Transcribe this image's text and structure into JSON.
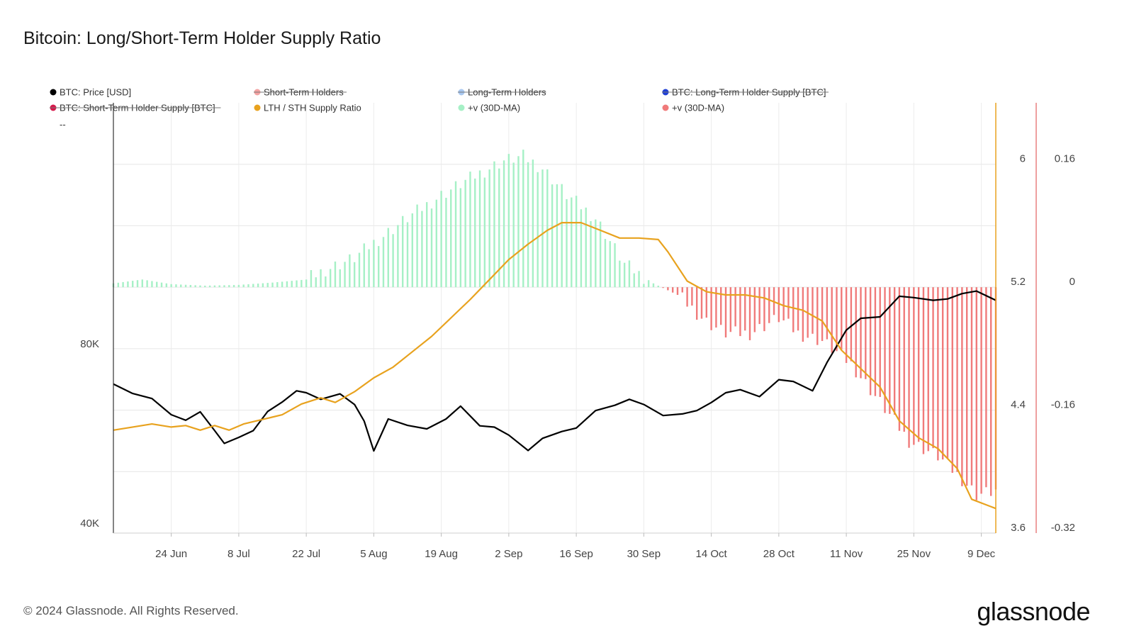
{
  "title": "Bitcoin: Long/Short-Term Holder Supply Ratio",
  "copyright": "© 2024 Glassnode. All Rights Reserved.",
  "brand": "glassnode",
  "chart_data": {
    "type": "line",
    "x_ticks": [
      "24 Jun",
      "8 Jul",
      "22 Jul",
      "5 Aug",
      "19 Aug",
      "2 Sep",
      "16 Sep",
      "30 Sep",
      "14 Oct",
      "28 Oct",
      "11 Nov",
      "25 Nov",
      "9 Dec"
    ],
    "x_tick_dates": [
      "2024-06-24",
      "2024-07-08",
      "2024-07-22",
      "2024-08-05",
      "2024-08-19",
      "2024-09-02",
      "2024-09-16",
      "2024-09-30",
      "2024-10-14",
      "2024-10-28",
      "2024-11-11",
      "2024-11-25",
      "2024-12-09"
    ],
    "x_range": [
      "2024-06-12",
      "2024-12-12"
    ],
    "legend": [
      {
        "label": "BTC: Price [USD]",
        "color": "#000000",
        "struck": false
      },
      {
        "label": "Short-Term Holders",
        "color": "#f4a3a3",
        "struck": true
      },
      {
        "label": "Long-Term Holders",
        "color": "#a9c8f0",
        "struck": true
      },
      {
        "label": "BTC: Long-Term Holder Supply [BTC]",
        "color": "#1f3fd6",
        "struck": true
      },
      {
        "label": "BTC: Short-Term Holder Supply [BTC]",
        "color": "#d6194b",
        "struck": true
      },
      {
        "label": "LTH / STH Supply Ratio",
        "color": "#e8a21e",
        "struck": false
      },
      {
        "label": "+v (30D-MA)",
        "color": "#a6f0c6",
        "struck": false
      },
      {
        "label": "+v (30D-MA)",
        "color": "#f07a7a",
        "struck": false
      }
    ],
    "legend_extra": "--",
    "axes": {
      "price": {
        "ticks": [
          "40K",
          "80K"
        ],
        "tick_values": [
          40000,
          80000
        ],
        "scale": "log"
      },
      "ratio": {
        "ticks": [
          "3.6",
          "4.4",
          "5.2",
          "6"
        ],
        "tick_values": [
          3.6,
          4.4,
          5.2,
          6.0
        ],
        "range": [
          3.6,
          6.4
        ]
      },
      "change": {
        "ticks": [
          "-0.32",
          "-0.16",
          "0",
          "0.16"
        ],
        "tick_values": [
          -0.32,
          -0.16,
          0,
          0.16
        ],
        "range": [
          -0.32,
          0.24
        ]
      }
    },
    "series": [
      {
        "name": "BTC: Price [USD]",
        "axis": "price",
        "color": "#000000",
        "x": [
          "2024-06-12",
          "2024-06-16",
          "2024-06-20",
          "2024-06-24",
          "2024-06-27",
          "2024-06-30",
          "2024-07-03",
          "2024-07-05",
          "2024-07-08",
          "2024-07-11",
          "2024-07-14",
          "2024-07-17",
          "2024-07-20",
          "2024-07-22",
          "2024-07-25",
          "2024-07-29",
          "2024-08-01",
          "2024-08-03",
          "2024-08-05",
          "2024-08-08",
          "2024-08-12",
          "2024-08-16",
          "2024-08-20",
          "2024-08-23",
          "2024-08-27",
          "2024-08-30",
          "2024-09-02",
          "2024-09-06",
          "2024-09-09",
          "2024-09-13",
          "2024-09-16",
          "2024-09-20",
          "2024-09-24",
          "2024-09-27",
          "2024-09-30",
          "2024-10-04",
          "2024-10-08",
          "2024-10-11",
          "2024-10-14",
          "2024-10-17",
          "2024-10-20",
          "2024-10-24",
          "2024-10-28",
          "2024-10-31",
          "2024-11-04",
          "2024-11-07",
          "2024-11-11",
          "2024-11-14",
          "2024-11-18",
          "2024-11-22",
          "2024-11-25",
          "2024-11-29",
          "2024-12-02",
          "2024-12-05",
          "2024-12-08",
          "2024-12-12"
        ],
        "values": [
          69800,
          67300,
          66000,
          62000,
          60700,
          62700,
          58300,
          55500,
          56800,
          58300,
          62800,
          65100,
          68000,
          67500,
          65800,
          67200,
          64500,
          60500,
          53900,
          61000,
          59500,
          58700,
          61000,
          64100,
          59400,
          59100,
          57300,
          54000,
          56600,
          58100,
          58900,
          63000,
          64300,
          65800,
          64500,
          61800,
          62200,
          63000,
          65000,
          67500,
          68300,
          66500,
          71000,
          70500,
          68000,
          75900,
          86000,
          90000,
          90500,
          98000,
          97500,
          96500,
          97000,
          99000,
          100000,
          96500
        ]
      },
      {
        "name": "LTH / STH Supply Ratio",
        "axis": "ratio",
        "color": "#e8a21e",
        "x": [
          "2024-06-12",
          "2024-06-16",
          "2024-06-20",
          "2024-06-24",
          "2024-06-27",
          "2024-06-30",
          "2024-07-03",
          "2024-07-06",
          "2024-07-09",
          "2024-07-13",
          "2024-07-17",
          "2024-07-21",
          "2024-07-25",
          "2024-07-28",
          "2024-08-01",
          "2024-08-05",
          "2024-08-09",
          "2024-08-13",
          "2024-08-17",
          "2024-08-21",
          "2024-08-25",
          "2024-08-29",
          "2024-09-02",
          "2024-09-06",
          "2024-09-10",
          "2024-09-13",
          "2024-09-17",
          "2024-09-21",
          "2024-09-25",
          "2024-09-29",
          "2024-10-03",
          "2024-10-05",
          "2024-10-09",
          "2024-10-13",
          "2024-10-17",
          "2024-10-21",
          "2024-10-25",
          "2024-10-29",
          "2024-11-02",
          "2024-11-06",
          "2024-11-10",
          "2024-11-14",
          "2024-11-18",
          "2024-11-22",
          "2024-11-26",
          "2024-11-30",
          "2024-12-04",
          "2024-12-07",
          "2024-12-12"
        ],
        "values": [
          4.27,
          4.29,
          4.31,
          4.29,
          4.3,
          4.27,
          4.3,
          4.27,
          4.31,
          4.34,
          4.37,
          4.44,
          4.48,
          4.45,
          4.52,
          4.61,
          4.68,
          4.78,
          4.88,
          5.0,
          5.12,
          5.25,
          5.38,
          5.48,
          5.57,
          5.62,
          5.62,
          5.57,
          5.52,
          5.52,
          5.51,
          5.43,
          5.24,
          5.17,
          5.15,
          5.15,
          5.13,
          5.08,
          5.05,
          4.98,
          4.79,
          4.67,
          4.55,
          4.33,
          4.22,
          4.15,
          4.02,
          3.82,
          3.76
        ]
      }
    ],
    "bars": {
      "name": "+v (30D-MA)",
      "axis": "change",
      "positive_color": "#a6f0c6",
      "negative_color": "#f07a7a",
      "x": [
        "2024-06-12",
        "2024-06-18",
        "2024-06-24",
        "2024-07-01",
        "2024-07-08",
        "2024-07-15",
        "2024-07-22",
        "2024-07-26",
        "2024-08-01",
        "2024-08-05",
        "2024-08-12",
        "2024-08-19",
        "2024-08-26",
        "2024-09-01",
        "2024-09-05",
        "2024-09-09",
        "2024-09-14",
        "2024-09-20",
        "2024-09-26",
        "2024-10-02",
        "2024-10-07",
        "2024-10-13",
        "2024-10-17",
        "2024-10-22",
        "2024-10-28",
        "2024-11-01",
        "2024-11-06",
        "2024-11-12",
        "2024-11-18",
        "2024-11-24",
        "2024-11-30",
        "2024-12-05",
        "2024-12-08",
        "2024-12-12"
      ],
      "values": [
        0.005,
        0.01,
        0.004,
        0.002,
        0.003,
        0.006,
        0.01,
        0.023,
        0.038,
        0.058,
        0.09,
        0.12,
        0.145,
        0.165,
        0.17,
        0.155,
        0.12,
        0.09,
        0.03,
        0.005,
        -0.01,
        -0.045,
        -0.06,
        -0.06,
        -0.04,
        -0.06,
        -0.07,
        -0.1,
        -0.15,
        -0.2,
        -0.22,
        -0.25,
        -0.27,
        -0.265
      ]
    }
  }
}
